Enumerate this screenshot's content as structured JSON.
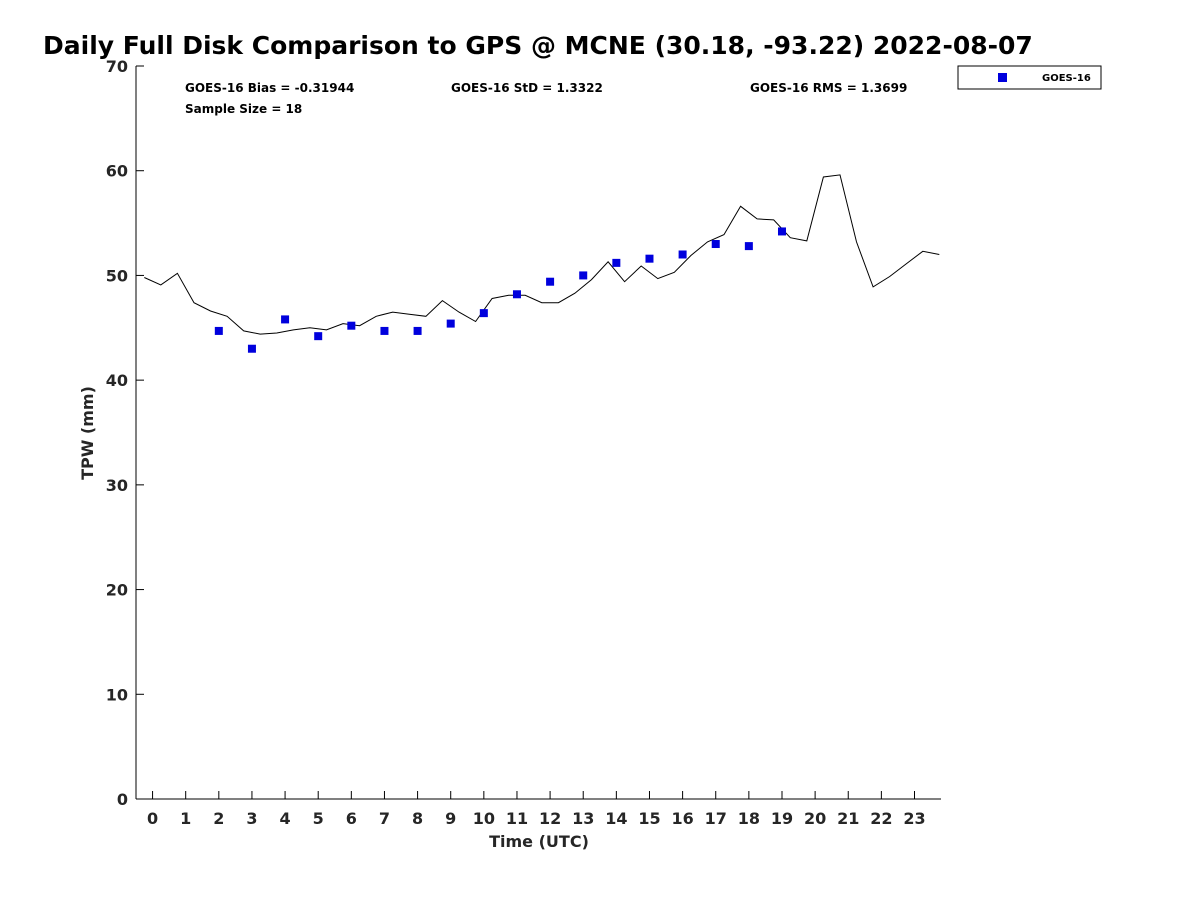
{
  "chart_data": {
    "type": "scatter",
    "title": "Daily Full Disk Comparison to GPS @ MCNE (30.18, -93.22) 2022-08-07",
    "xlabel": "Time (UTC)",
    "ylabel": "TPW (mm)",
    "xlim": [
      -0.5,
      23.8
    ],
    "ylim": [
      0,
      70
    ],
    "x_ticks": [
      "0",
      "1",
      "2",
      "3",
      "4",
      "5",
      "6",
      "7",
      "8",
      "9",
      "10",
      "11",
      "12",
      "13",
      "14",
      "15",
      "16",
      "17",
      "18",
      "19",
      "20",
      "21",
      "22",
      "23"
    ],
    "y_ticks": [
      "0",
      "10",
      "20",
      "30",
      "40",
      "50",
      "60",
      "70"
    ],
    "grid": false,
    "legend": {
      "position": "outside-top-right",
      "entries": [
        "GOES-16"
      ]
    },
    "stats": {
      "bias": "GOES-16 Bias = -0.31944",
      "std": "GOES-16 StD = 1.3322",
      "rms": "GOES-16 RMS = 1.3699",
      "sample": "Sample Size = 18"
    },
    "series": [
      {
        "name": "GOES-16",
        "kind": "markers",
        "color": "#0000dd",
        "x": [
          2,
          3,
          4,
          5,
          6,
          7,
          8,
          9,
          10,
          11,
          12,
          13,
          14,
          15,
          16,
          17,
          18,
          19
        ],
        "y": [
          44.7,
          43.0,
          45.8,
          44.2,
          45.2,
          44.7,
          44.7,
          45.4,
          46.4,
          48.2,
          49.4,
          50.0,
          51.2,
          51.6,
          52.0,
          53.0,
          52.8,
          54.2
        ]
      },
      {
        "kind": "line",
        "color": "#000000",
        "x": [
          -0.25,
          0.25,
          0.75,
          1.25,
          1.75,
          2.25,
          2.75,
          3.25,
          3.75,
          4.25,
          4.75,
          5.25,
          5.75,
          6.25,
          6.75,
          7.25,
          7.75,
          8.25,
          8.75,
          9.25,
          9.75,
          10.25,
          10.75,
          11.25,
          11.75,
          12.25,
          12.75,
          13.25,
          13.75,
          14.25,
          14.75,
          15.25,
          15.75,
          16.25,
          16.75,
          17.25,
          17.75,
          18.25,
          18.75,
          19.25,
          19.75,
          20.25,
          20.75,
          21.25,
          21.75,
          22.25,
          22.75,
          23.25,
          23.75
        ],
        "y": [
          49.8,
          49.1,
          50.2,
          47.4,
          46.6,
          46.1,
          44.7,
          44.4,
          44.5,
          44.8,
          45.0,
          44.8,
          45.4,
          45.2,
          46.1,
          46.5,
          46.3,
          46.1,
          47.6,
          46.5,
          45.6,
          47.8,
          48.1,
          48.1,
          47.4,
          47.4,
          48.3,
          49.6,
          51.3,
          49.4,
          50.9,
          49.7,
          50.3,
          51.9,
          53.2,
          53.9,
          56.6,
          55.4,
          55.3,
          53.6,
          53.3,
          59.4,
          59.6,
          53.2,
          48.9,
          49.9,
          51.1,
          52.3,
          52.0
        ]
      }
    ]
  }
}
